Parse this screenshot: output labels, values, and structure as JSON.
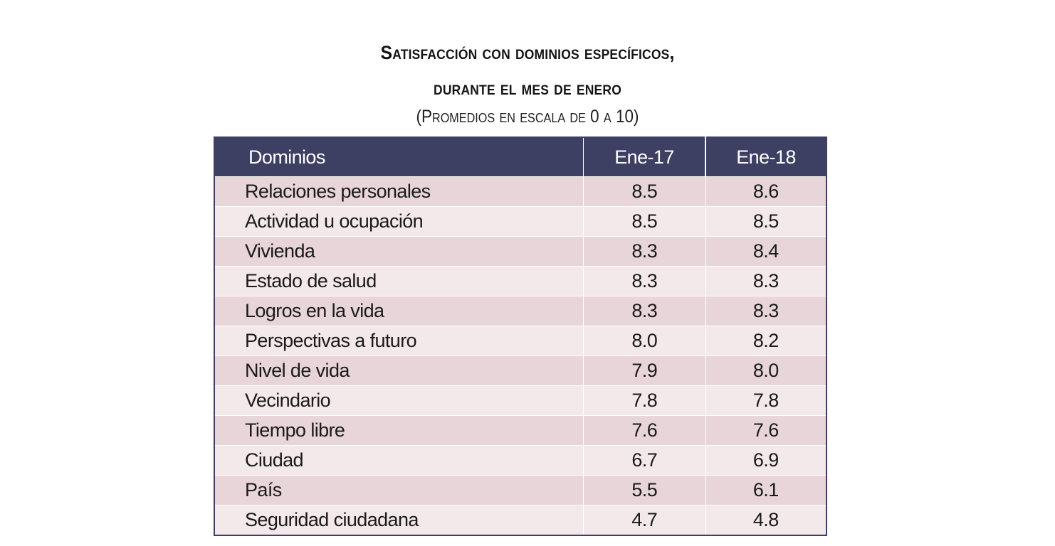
{
  "chart_data": {
    "type": "table",
    "title_line1": "Satisfacción con dominios específicos,",
    "title_line2": "durante el mes de enero",
    "subtitle": "(Promedios en escala de 0 a 10)",
    "columns": [
      "Dominios",
      "Ene-17",
      "Ene-18"
    ],
    "rows": [
      {
        "domain": "Relaciones personales",
        "ene17": "8.5",
        "ene18": "8.6"
      },
      {
        "domain": "Actividad u ocupación",
        "ene17": "8.5",
        "ene18": "8.5"
      },
      {
        "domain": "Vivienda",
        "ene17": "8.3",
        "ene18": "8.4"
      },
      {
        "domain": "Estado de salud",
        "ene17": "8.3",
        "ene18": "8.3"
      },
      {
        "domain": "Logros en la vida",
        "ene17": "8.3",
        "ene18": "8.3"
      },
      {
        "domain": "Perspectivas a futuro",
        "ene17": "8.0",
        "ene18": "8.2"
      },
      {
        "domain": "Nivel de vida",
        "ene17": "7.9",
        "ene18": "8.0"
      },
      {
        "domain": "Vecindario",
        "ene17": "7.8",
        "ene18": "7.8"
      },
      {
        "domain": "Tiempo libre",
        "ene17": "7.6",
        "ene18": "7.6"
      },
      {
        "domain": "Ciudad",
        "ene17": "6.7",
        "ene18": "6.9"
      },
      {
        "domain": "País",
        "ene17": "5.5",
        "ene18": "6.1"
      },
      {
        "domain": "Seguridad ciudadana",
        "ene17": "4.7",
        "ene18": "4.8"
      }
    ]
  },
  "colors": {
    "header_bg": "#3d3f63",
    "header_text": "#ffffff",
    "row_dark": "#e8d5d9",
    "row_light": "#f3e8ea"
  }
}
